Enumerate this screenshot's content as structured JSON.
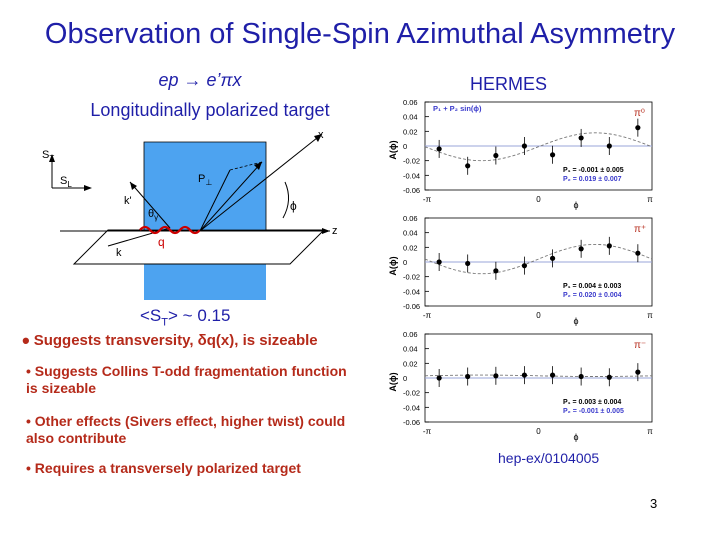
{
  "slide": {
    "title": "Observation of Single-Spin Azimuthal Asymmetry",
    "reaction": "ep → e’πx",
    "target_label": "Longitudinally polarized target",
    "experiment": "HERMES",
    "st_label": {
      "prefix": "<S",
      "sub": "T",
      "suffix": "> ~ 0.15"
    },
    "bullets": [
      "Suggests transversity, δq(x), is sizeable",
      "• Suggests Collins T-odd fragmentation function is sizeable",
      "• Other effects (Sivers effect, higher twist) could also contribute",
      "• Requires a transversely polarized target"
    ],
    "reference": "hep-ex/0104005",
    "page_number": "3"
  },
  "diagram": {
    "labels": {
      "st": "S",
      "st_sub": "T",
      "sl": "S",
      "sl_sub": "L",
      "pperp": "P",
      "pperp_sub": "⊥",
      "kprime": "k'",
      "k": "k",
      "q": "q",
      "theta": "θ",
      "theta_sub": "γ",
      "phi": "ϕ",
      "x": "x",
      "z": "z"
    },
    "colors": {
      "plane": "#4da3f0",
      "q_line": "#cc0000"
    }
  },
  "chart_data": [
    {
      "type": "scatter",
      "particle": "π⁰",
      "title": "P₁ + P₂ sin(ϕ)",
      "ylabel": "A(ϕ)",
      "xlabel": "ϕ",
      "ylim": [
        -0.06,
        0.06
      ],
      "yticks": [
        "0.06",
        "0.04",
        "0.02",
        "0",
        "-0.02",
        "-0.04",
        "-0.06"
      ],
      "xticks": [
        "-π",
        "0",
        "π"
      ],
      "x": [
        -2.75,
        -1.96,
        -1.18,
        -0.39,
        0.39,
        1.18,
        1.96,
        2.75
      ],
      "values": [
        -0.004,
        -0.027,
        -0.013,
        0.0,
        -0.012,
        0.011,
        0.0,
        0.025
      ],
      "fit": {
        "p1": -0.001,
        "p2": 0.019
      },
      "params": [
        "P₁ = -0.001 ± 0.005",
        "P₂ = 0.019 ± 0.007"
      ],
      "param_colors": [
        "#000000",
        "#3b3bcc"
      ]
    },
    {
      "type": "scatter",
      "particle": "π⁺",
      "title": "",
      "ylabel": "A(ϕ)",
      "xlabel": "ϕ",
      "ylim": [
        -0.06,
        0.06
      ],
      "yticks": [
        "0.06",
        "0.04",
        "0.02",
        "0",
        "-0.02",
        "-0.04",
        "-0.06"
      ],
      "xticks": [
        "-π",
        "0",
        "π"
      ],
      "x": [
        -2.75,
        -1.96,
        -1.18,
        -0.39,
        0.39,
        1.18,
        1.96,
        2.75
      ],
      "values": [
        0.0,
        -0.002,
        -0.012,
        -0.005,
        0.005,
        0.018,
        0.022,
        0.012
      ],
      "fit": {
        "p1": 0.004,
        "p2": 0.02
      },
      "params": [
        "P₁ = 0.004 ± 0.003",
        "P₂ = 0.020 ± 0.004"
      ],
      "param_colors": [
        "#000000",
        "#3b3bcc"
      ]
    },
    {
      "type": "scatter",
      "particle": "π⁻",
      "title": "",
      "ylabel": "A(ϕ)",
      "xlabel": "ϕ",
      "ylim": [
        -0.06,
        0.06
      ],
      "yticks": [
        "0.06",
        "0.04",
        "0.02",
        "0",
        "-0.02",
        "-0.04",
        "-0.06"
      ],
      "xticks": [
        "-π",
        "0",
        "π"
      ],
      "x": [
        -2.75,
        -1.96,
        -1.18,
        -0.39,
        0.39,
        1.18,
        1.96,
        2.75
      ],
      "values": [
        0.0,
        0.002,
        0.003,
        0.004,
        0.004,
        0.002,
        0.001,
        0.008
      ],
      "fit": {
        "p1": 0.003,
        "p2": -0.001
      },
      "params": [
        "P₁ = 0.003 ± 0.004",
        "P₂ = -0.001 ± 0.005"
      ],
      "param_colors": [
        "#000000",
        "#3b3bcc"
      ]
    }
  ]
}
